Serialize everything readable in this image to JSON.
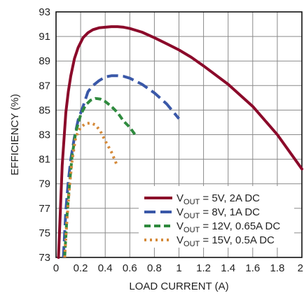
{
  "chart_data": {
    "type": "line",
    "xlabel": "LOAD CURRENT (A)",
    "ylabel": "EFFICIENCY (%)",
    "xlim": [
      0,
      2
    ],
    "ylim": [
      73,
      93
    ],
    "x_ticks": [
      "0",
      "0.2",
      "0.4",
      "0.6",
      "0.8",
      "1",
      "1.2",
      "1.4",
      "1.6",
      "1.8",
      "2"
    ],
    "y_ticks": [
      "73",
      "75",
      "77",
      "79",
      "81",
      "83",
      "85",
      "87",
      "89",
      "91",
      "93"
    ],
    "grid": true,
    "legend_position": "bottom-right",
    "series": [
      {
        "name_main": "V",
        "name_sub": "OUT",
        "name_rest": " = 5V, 2A DC",
        "color": "#8b0a2a",
        "dash": "solid",
        "x": [
          0.02,
          0.05,
          0.08,
          0.1,
          0.12,
          0.15,
          0.18,
          0.22,
          0.26,
          0.3,
          0.35,
          0.4,
          0.45,
          0.5,
          0.55,
          0.6,
          0.7,
          0.8,
          0.9,
          1.0,
          1.1,
          1.2,
          1.4,
          1.6,
          1.8,
          2.0
        ],
        "y": [
          73.0,
          80.5,
          84.8,
          86.5,
          87.8,
          89.2,
          90.1,
          90.9,
          91.3,
          91.55,
          91.7,
          91.75,
          91.8,
          91.8,
          91.75,
          91.65,
          91.35,
          90.9,
          90.4,
          89.9,
          89.3,
          88.6,
          87.1,
          85.3,
          83.0,
          80.2
        ]
      },
      {
        "name_main": "V",
        "name_sub": "OUT",
        "name_rest": " = 8V, 1A DC",
        "color": "#3a58a8",
        "dash": "long",
        "x": [
          0.06,
          0.08,
          0.1,
          0.12,
          0.15,
          0.18,
          0.22,
          0.26,
          0.3,
          0.35,
          0.4,
          0.45,
          0.5,
          0.55,
          0.6,
          0.7,
          0.8,
          0.9,
          1.0
        ],
        "y": [
          73.0,
          76.8,
          79.2,
          81.0,
          82.8,
          84.2,
          85.3,
          86.5,
          87.0,
          87.4,
          87.7,
          87.8,
          87.8,
          87.75,
          87.6,
          87.1,
          86.4,
          85.5,
          84.3
        ]
      },
      {
        "name_main": "V",
        "name_sub": "OUT",
        "name_rest": " = 12V, 0.65A DC",
        "color": "#2f8a3e",
        "dash": "medium",
        "x": [
          0.07,
          0.09,
          0.11,
          0.13,
          0.16,
          0.2,
          0.24,
          0.28,
          0.32,
          0.36,
          0.4,
          0.45,
          0.5,
          0.55,
          0.6,
          0.65
        ],
        "y": [
          73.0,
          76.5,
          79.0,
          81.2,
          83.2,
          84.6,
          85.4,
          85.8,
          85.95,
          85.9,
          85.7,
          85.3,
          84.8,
          84.1,
          83.6,
          82.9
        ]
      },
      {
        "name_main": "V",
        "name_sub": "OUT",
        "name_rest": " = 15V, 0.5A DC",
        "color": "#d58a3a",
        "dash": "dot",
        "x": [
          0.07,
          0.09,
          0.11,
          0.13,
          0.16,
          0.2,
          0.24,
          0.28,
          0.32,
          0.36,
          0.4,
          0.45,
          0.5
        ],
        "y": [
          73.0,
          76.2,
          78.8,
          80.8,
          82.8,
          83.6,
          83.9,
          83.95,
          83.8,
          83.3,
          82.5,
          81.6,
          80.4
        ]
      }
    ]
  }
}
